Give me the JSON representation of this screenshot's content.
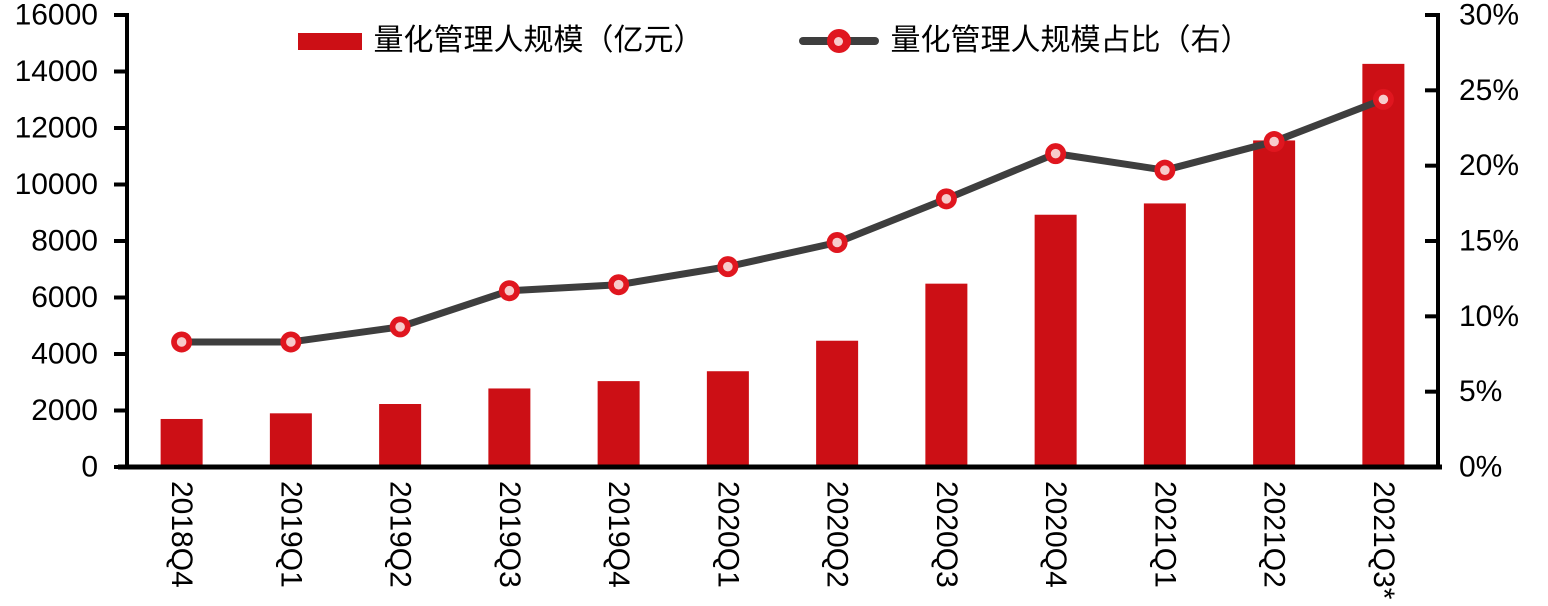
{
  "page": {
    "background": "#ffffff"
  },
  "chart_data": {
    "type": "combo",
    "title": "",
    "grid": false,
    "legend_position": "top",
    "axis_color": "#000000",
    "categories": [
      "2018Q4",
      "2019Q1",
      "2019Q2",
      "2019Q3",
      "2019Q4",
      "2020Q1",
      "2020Q2",
      "2020Q3",
      "2020Q4",
      "2021Q1",
      "2021Q2",
      "2021Q3*"
    ],
    "series": [
      {
        "name": "量化管理人规模（亿元）",
        "type": "bar",
        "y_axis": "left",
        "color": "#CC0F15",
        "values": [
          1700,
          1900,
          2230,
          2780,
          3040,
          3390,
          4470,
          6490,
          8930,
          9330,
          11560,
          14270
        ]
      },
      {
        "name": "量化管理人规模占比（右）",
        "type": "line",
        "y_axis": "right",
        "color": "#3E3E3E",
        "marker_color": "#E0161F",
        "marker_inner_color": "#F7CBCB",
        "values": [
          8.3,
          8.3,
          9.3,
          11.7,
          12.1,
          13.3,
          14.9,
          17.8,
          20.8,
          19.7,
          21.6,
          24.4
        ]
      }
    ],
    "left_axis": {
      "min": 0,
      "max": 16000,
      "step": 2000,
      "tick_labels": [
        "0",
        "2000",
        "4000",
        "6000",
        "8000",
        "10000",
        "12000",
        "14000",
        "16000"
      ]
    },
    "right_axis": {
      "min": 0,
      "max": 30,
      "step": 5,
      "unit": "%",
      "tick_labels": [
        "0%",
        "5%",
        "10%",
        "15%",
        "20%",
        "25%",
        "30%"
      ]
    }
  }
}
